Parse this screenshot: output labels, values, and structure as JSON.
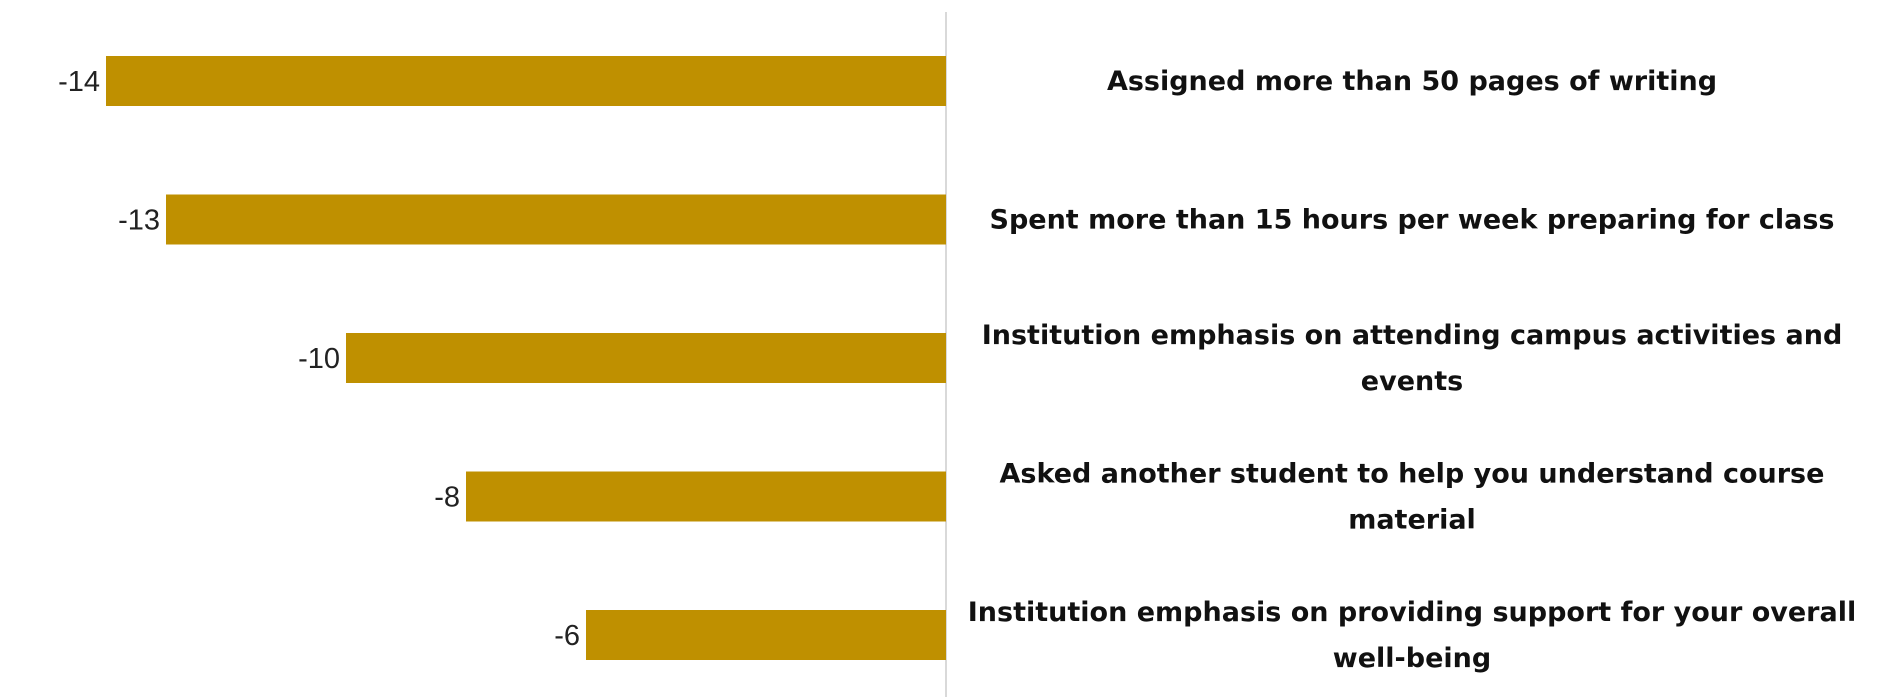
{
  "chart_data": {
    "type": "bar",
    "orientation": "horizontal",
    "categories": [
      "Assigned more than 50 pages of writing",
      "Spent more than 15 hours per week preparing for class",
      "Institution emphasis on attending campus activities and events",
      "Asked another student to help you understand course material",
      "Institution emphasis on providing support for your overall well-being"
    ],
    "label_lines": [
      [
        "Assigned more than 50 pages of writing"
      ],
      [
        "Spent more than 15 hours per week preparing for class"
      ],
      [
        "Institution emphasis on attending campus activities and",
        "events"
      ],
      [
        "Asked another student to help you understand course",
        "material"
      ],
      [
        "Institution emphasis on providing support for your overall",
        "well-being"
      ]
    ],
    "values": [
      -14,
      -13,
      -10,
      -8,
      -6
    ],
    "value_labels": [
      "-14",
      "-13",
      "-10",
      "-8",
      "-6"
    ],
    "xlim": [
      -15.1,
      0
    ],
    "colors": {
      "bar": "#BF9000",
      "axis": "#D9D9D9"
    },
    "grid": false,
    "legend": "none"
  }
}
